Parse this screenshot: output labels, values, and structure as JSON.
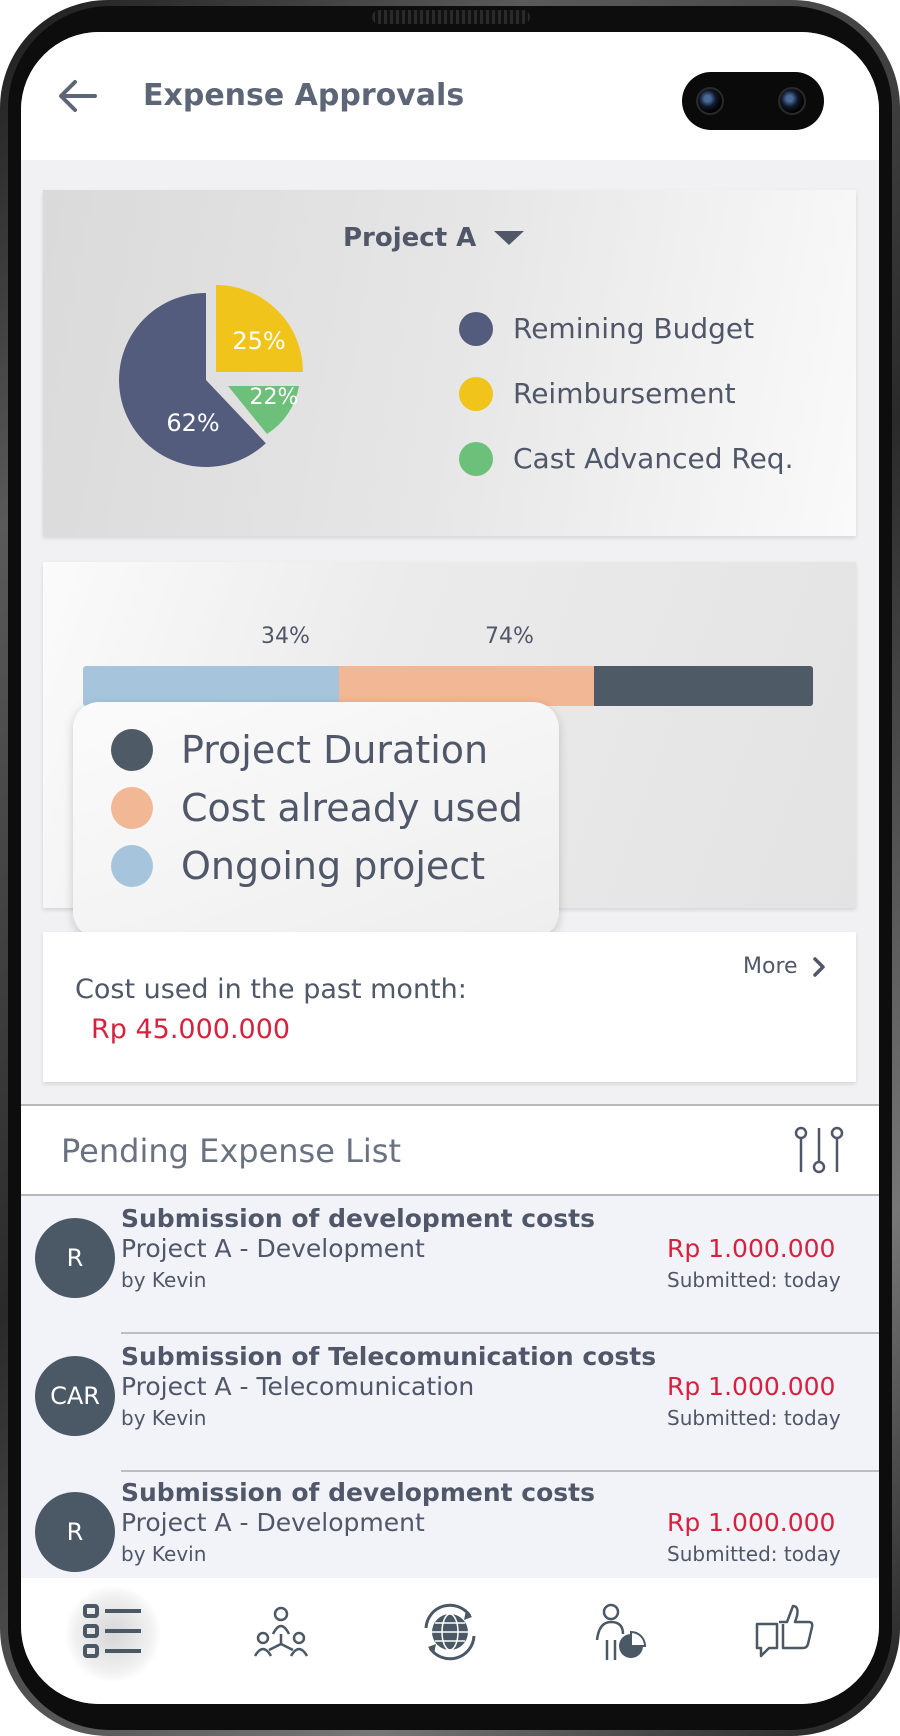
{
  "header": {
    "title": "Expense Approvals",
    "back_icon": "arrow-left-icon"
  },
  "budget_card": {
    "project": "Project A",
    "pie": [
      {
        "label": "Remining Budget",
        "percent_label": "62%",
        "color": "#535c7c"
      },
      {
        "label": "Reimbursement",
        "percent_label": "25%",
        "color": "#f0c41b"
      },
      {
        "label": "Cast Advanced Req.",
        "percent_label": "22%",
        "color": "#6cc07a"
      }
    ]
  },
  "progress_card": {
    "markers": [
      "34%",
      "74%"
    ],
    "segments": [
      {
        "label": "Ongoing project",
        "fraction": 0.35,
        "color": "#a6c5dc"
      },
      {
        "label": "Cost already used",
        "fraction": 0.35,
        "color": "#f2b895"
      },
      {
        "label": "Project Duration",
        "fraction": 0.3,
        "color": "#4e5a66"
      }
    ],
    "legend": [
      {
        "label": "Project Duration",
        "color": "#4e5a66"
      },
      {
        "label": "Cost already used",
        "color": "#f2b895"
      },
      {
        "label": "Ongoing project",
        "color": "#a6c5dc"
      }
    ]
  },
  "cost_card": {
    "label": "Cost used in the past month:",
    "value": "Rp 45.000.000",
    "more_label": "More"
  },
  "pending": {
    "title": "Pending Expense List",
    "filter_icon": "filter-sliders-icon",
    "items": [
      {
        "avatar": "R",
        "title": "Submission of development costs",
        "subtitle": "Project A - Development",
        "by": "by Kevin",
        "amount": "Rp 1.000.000",
        "date": "Submitted: today"
      },
      {
        "avatar": "CAR",
        "title": "Submission of Telecomunication costs",
        "subtitle": "Project A - Telecomunication",
        "by": "by Kevin",
        "amount": "Rp 1.000.000",
        "date": "Submitted: today"
      },
      {
        "avatar": "R",
        "title": "Submission of development costs",
        "subtitle": "Project A - Development",
        "by": "by Kevin",
        "amount": "Rp 1.000.000",
        "date": "Submitted: today"
      }
    ]
  },
  "bottom_nav": [
    {
      "icon": "checklist-icon",
      "active": true
    },
    {
      "icon": "team-network-icon",
      "active": false
    },
    {
      "icon": "globe-sync-icon",
      "active": false
    },
    {
      "icon": "person-chart-icon",
      "active": false
    },
    {
      "icon": "thumbs-up-chat-icon",
      "active": false
    }
  ],
  "colors": {
    "accent_red": "#d6223e",
    "text_primary": "#4f5769"
  }
}
